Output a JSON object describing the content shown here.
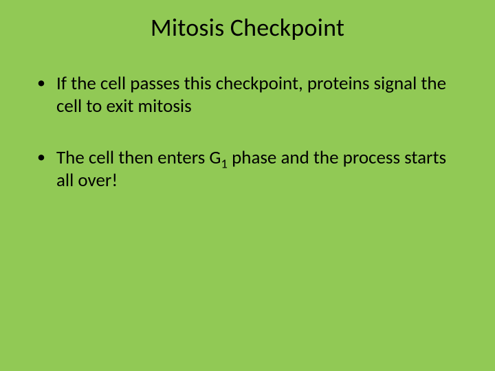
{
  "slide": {
    "background_color": "#91c955",
    "text_color": "#000000",
    "title": "Mitosis Checkpoint",
    "title_fontsize": 36,
    "body_fontsize": 27,
    "bullets": [
      {
        "text": "If the cell passes this checkpoint, proteins signal the cell to exit mitosis",
        "has_subscript": false
      },
      {
        "text_before": "The cell then enters G",
        "subscript": "1",
        "text_after": " phase and the process starts all over!",
        "has_subscript": true
      }
    ]
  }
}
